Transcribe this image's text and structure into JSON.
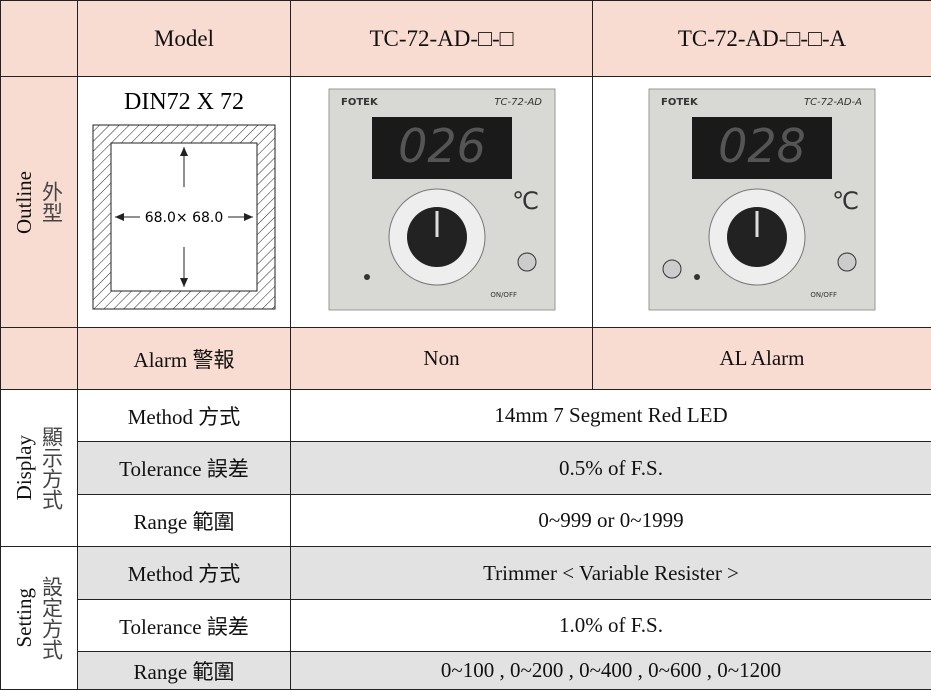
{
  "table": {
    "header": {
      "model_label": "Model",
      "col1": "TC-72-AD-□-□",
      "col2": "TC-72-AD-□-□-A"
    },
    "outline": {
      "label": "Outline",
      "label_zh": "外型",
      "din": "DIN72 X 72",
      "dim": "68.0× 68.0",
      "photo1": {
        "brand": "FOTEK",
        "model": "TC-72-AD",
        "display": "026",
        "unit": "℃",
        "switch": "ON/OFF"
      },
      "photo2": {
        "brand": "FOTEK",
        "model": "TC-72-AD-A",
        "display": "028",
        "unit": "℃",
        "switch": "ON/OFF"
      }
    },
    "alarm": {
      "label": "Alarm 警報",
      "values": [
        "Non",
        "AL Alarm"
      ]
    },
    "display": {
      "label": "Display",
      "label_zh": "顯示方式",
      "rows": [
        [
          "Method 方式",
          "14mm 7 Segment Red LED"
        ],
        [
          "Tolerance 誤差",
          "0.5% of F.S."
        ],
        [
          "Range 範圍",
          "0~999 or 0~1999"
        ]
      ]
    },
    "setting": {
      "label": "Setting",
      "label_zh": "設定方式",
      "rows": [
        [
          "Method 方式",
          "Trimmer < Variable Resister >"
        ],
        [
          "Tolerance 誤差",
          "1.0% of F.S."
        ],
        [
          "Range 範圍",
          "0~100 , 0~200 , 0~400 , 0~600 , 0~1200"
        ]
      ]
    }
  }
}
